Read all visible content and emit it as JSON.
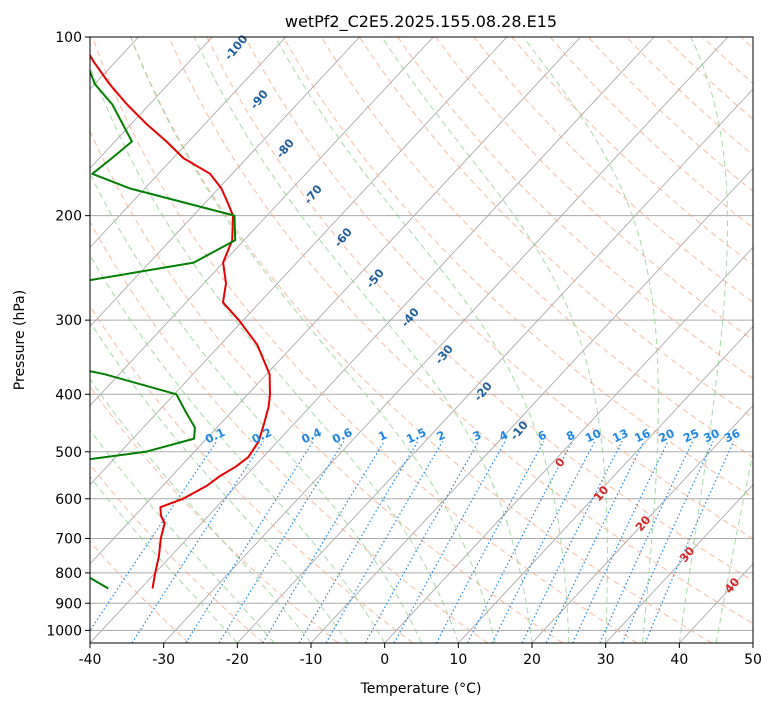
{
  "chart_data": {
    "type": "line",
    "title": "wetPf2_C2E5.2025.155.08.28.E15",
    "xlabel": "Temperature (°C)",
    "ylabel": "Pressure (hPa)",
    "xlim": [
      -40,
      50
    ],
    "ylim": [
      1050,
      100
    ],
    "y_scale": "log",
    "grid": true,
    "x_ticks": [
      -40,
      -30,
      -20,
      -10,
      0,
      10,
      20,
      30,
      40,
      50
    ],
    "y_ticks": [
      100,
      200,
      300,
      400,
      500,
      600,
      700,
      800,
      900,
      1000
    ],
    "skew_deg_per_decade": 75,
    "series": [
      {
        "color": "#e60000",
        "points": [
          [
            -38.4,
            850
          ],
          [
            -40,
            800
          ],
          [
            -41.6,
            750
          ],
          [
            -43.6,
            700
          ],
          [
            -45,
            660
          ],
          [
            -46.5,
            640
          ],
          [
            -47.6,
            620
          ],
          [
            -45.6,
            600
          ],
          [
            -44,
            570
          ],
          [
            -43.5,
            550
          ],
          [
            -42.5,
            530
          ],
          [
            -42,
            510
          ],
          [
            -42.6,
            480
          ],
          [
            -44,
            450
          ],
          [
            -45.6,
            420
          ],
          [
            -47,
            400
          ],
          [
            -49.6,
            370
          ],
          [
            -55,
            330
          ],
          [
            -60.6,
            300
          ],
          [
            -65,
            280
          ],
          [
            -67,
            260
          ],
          [
            -70,
            240
          ],
          [
            -71.6,
            220
          ],
          [
            -74.6,
            200
          ],
          [
            -77,
            190
          ],
          [
            -79.6,
            180
          ],
          [
            -83,
            170
          ],
          [
            -88.6,
            160
          ],
          [
            -93,
            150
          ],
          [
            -98,
            140
          ],
          [
            -103,
            130
          ],
          [
            -108,
            120
          ],
          [
            -113,
            110
          ],
          [
            -118,
            100
          ]
        ]
      },
      {
        "color": "#007f00",
        "points": [
          [
            -44.4,
            850
          ],
          [
            -50,
            800
          ],
          [
            -55.5,
            770
          ],
          [
            -59.7,
            750
          ],
          [
            -62,
            730
          ],
          [
            -67.5,
            700
          ],
          [
            -71.6,
            685
          ],
          [
            -76.6,
            665
          ],
          [
            -82.2,
            645
          ],
          [
            -96,
            615
          ],
          [
            -103,
            600
          ],
          [
            -112,
            580
          ],
          [
            -121,
            560
          ],
          [
            -119.6,
            550
          ],
          [
            -102,
            540
          ],
          [
            -68,
            525
          ],
          [
            -56.6,
            500
          ],
          [
            -51.7,
            475
          ],
          [
            -53,
            455
          ],
          [
            -56,
            430
          ],
          [
            -59.7,
            400
          ],
          [
            -72,
            370
          ],
          [
            -86,
            345
          ],
          [
            -93,
            320
          ],
          [
            -94,
            300
          ],
          [
            -90.6,
            280
          ],
          [
            -88,
            260
          ],
          [
            -74,
            240
          ],
          [
            -71.2,
            220
          ],
          [
            -74.4,
            200
          ],
          [
            -92,
            180
          ],
          [
            -99,
            170
          ],
          [
            -98.3,
            160
          ],
          [
            -97.7,
            150
          ],
          [
            -105,
            130
          ],
          [
            -110,
            120
          ],
          [
            -114,
            110
          ],
          [
            -117.4,
            100
          ]
        ]
      }
    ],
    "mixing_ratio_labels": [
      "0.1",
      "0.2",
      "0.4",
      "0.6",
      "1",
      "1.5",
      "2",
      "3",
      "4",
      "6",
      "8",
      "10",
      "13",
      "16",
      "20",
      "25",
      "30",
      "36"
    ],
    "mixing_ratio_values": [
      0.1,
      0.2,
      0.4,
      0.6,
      1,
      1.5,
      2,
      3,
      4,
      6,
      8,
      10,
      13,
      16,
      20,
      25,
      30,
      36
    ],
    "dry_adiabat_labels": [
      "-100",
      "-90",
      "-80",
      "-70",
      "-60",
      "-50",
      "-40",
      "-30",
      "-20",
      "-10"
    ],
    "moist_adiabat_labels": [
      "0",
      "10",
      "20",
      "30",
      "40"
    ],
    "colors": {
      "temperature": "#e60000",
      "dewpoint": "#007f00",
      "mixing_ratio": "#1e88e5",
      "dry_adiabat_label": "#1f5f9f",
      "moist_adiabat_label": "#d62728",
      "dry_adiabat_line": "#f4a582",
      "moist_adiabat_line": "#91cf91",
      "isotherm": "#aaaaaa"
    }
  }
}
